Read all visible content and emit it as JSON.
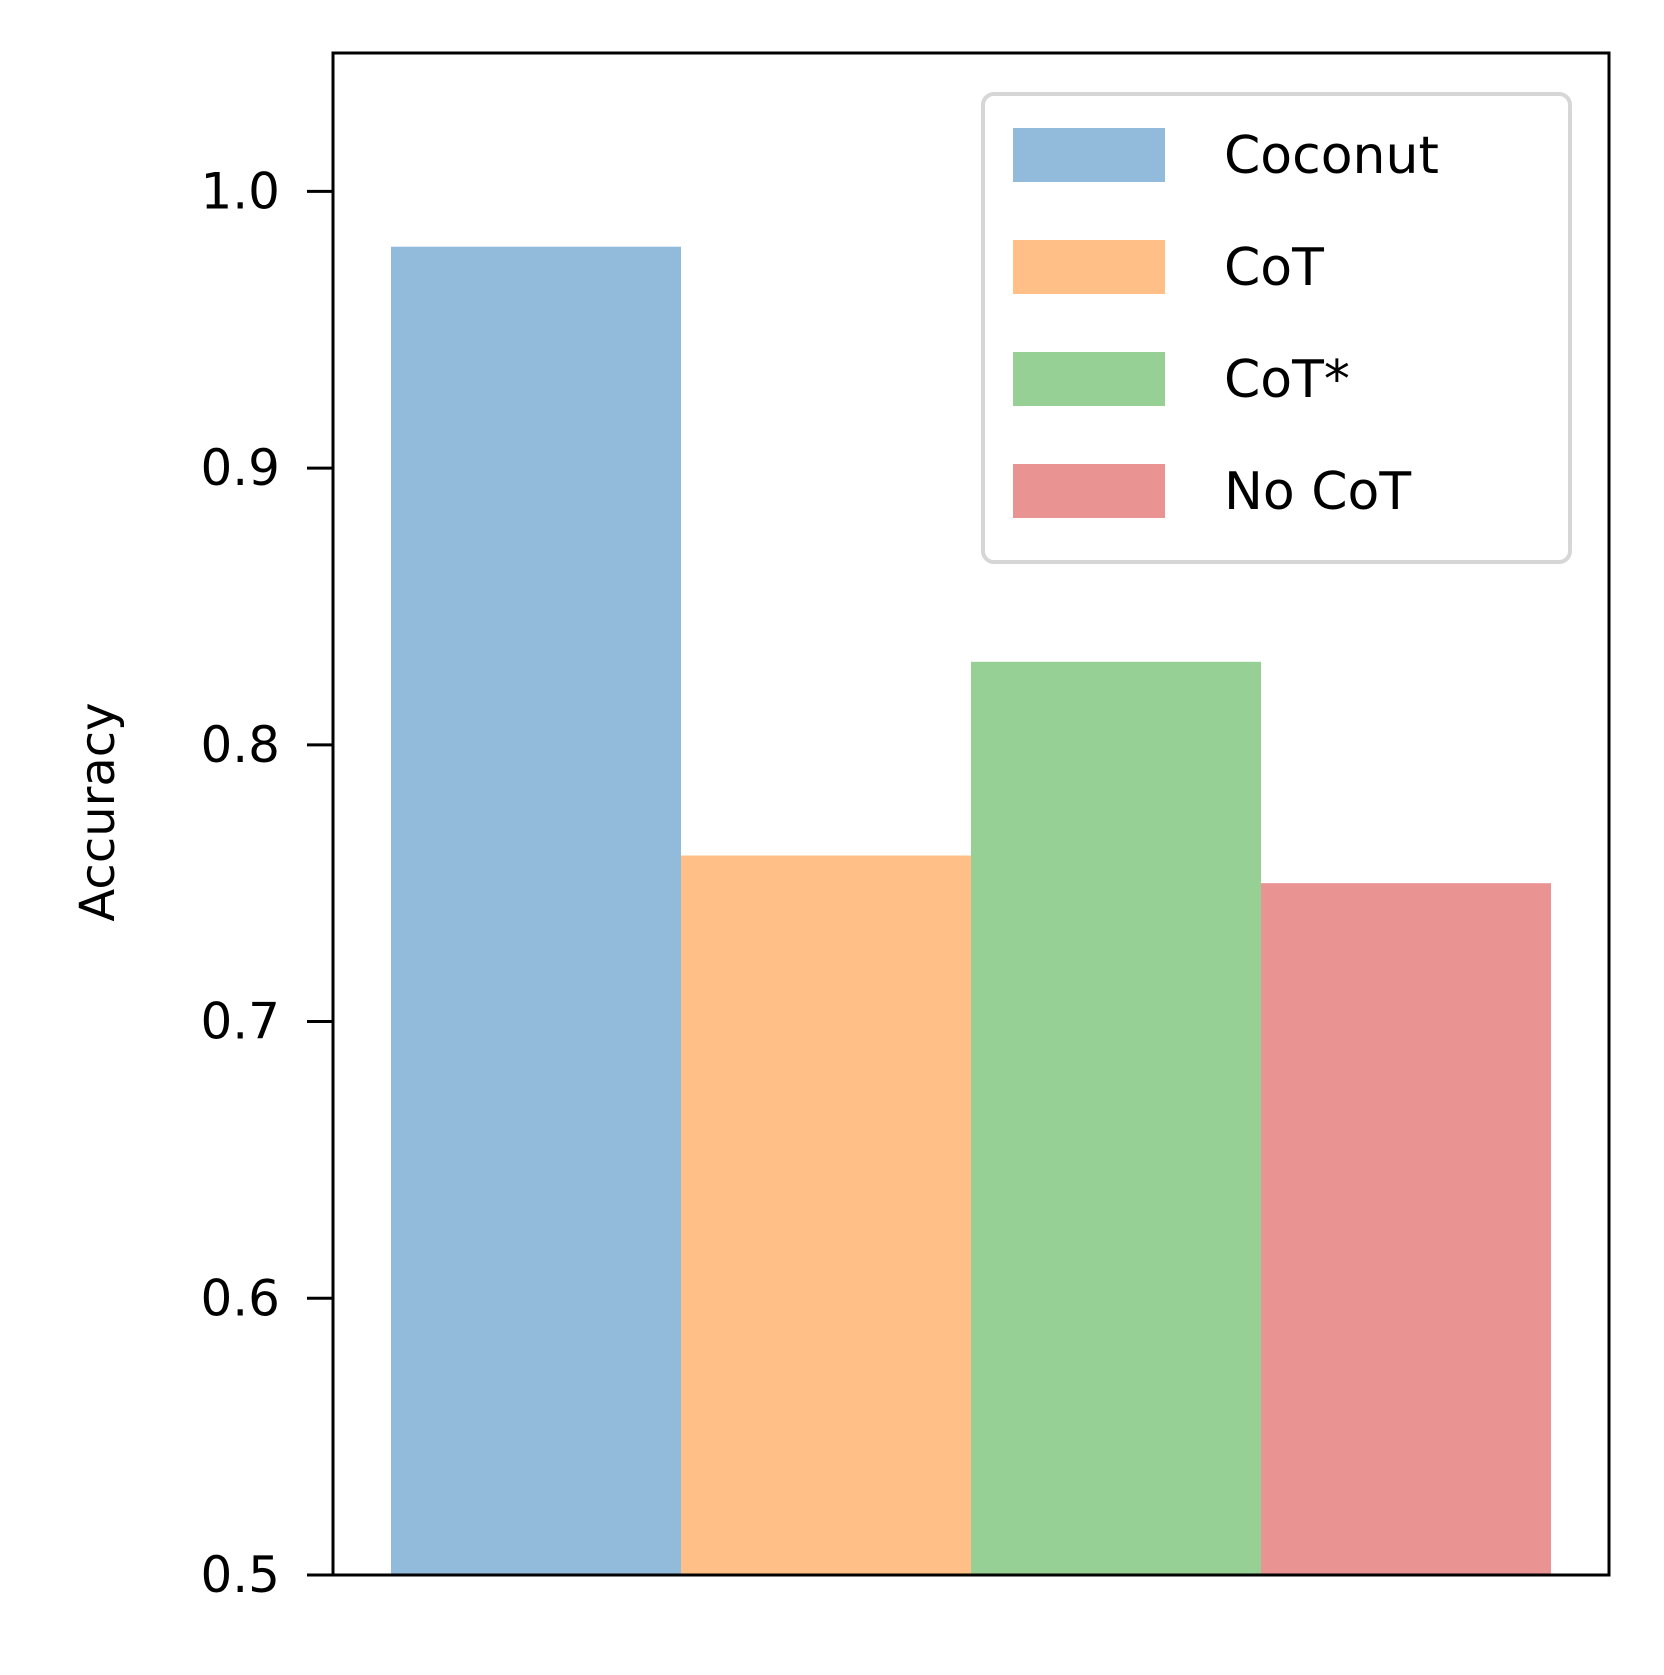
{
  "chart_data": {
    "type": "bar",
    "title": "",
    "xlabel": "",
    "ylabel": "Accuracy",
    "ylim": [
      0.5,
      1.05
    ],
    "yticks": [
      0.5,
      0.6,
      0.7,
      0.8,
      0.9,
      1.0
    ],
    "ytick_labels": [
      "0.5",
      "0.6",
      "0.7",
      "0.8",
      "0.9",
      "1.0"
    ],
    "grid": false,
    "legend_position": "top-right",
    "series": [
      {
        "name": "Coconut",
        "value": 0.98,
        "color": "#91badb"
      },
      {
        "name": "CoT",
        "value": 0.76,
        "color": "#ffbf86"
      },
      {
        "name": "CoT*",
        "value": 0.83,
        "color": "#96d094"
      },
      {
        "name": "No CoT",
        "value": 0.75,
        "color": "#e99393"
      }
    ]
  }
}
